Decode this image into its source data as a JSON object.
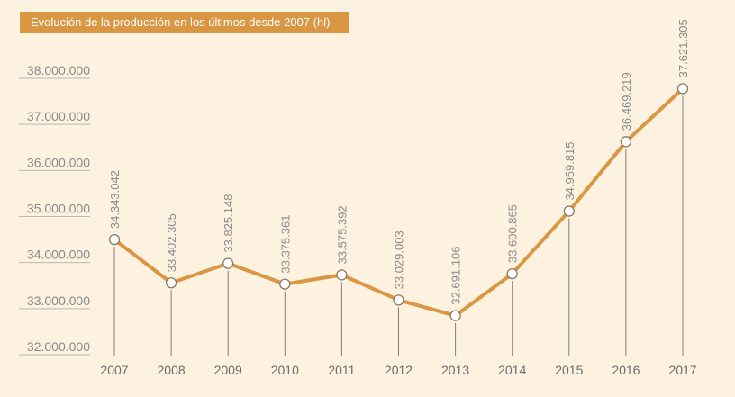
{
  "colors": {
    "background": "#fcf2df",
    "accent": "#d99744",
    "line": "#d99744",
    "marker_fill": "#ffffff",
    "stem": "#7f7f7f",
    "tick_text": "#8a8a8a"
  },
  "chart_data": {
    "type": "line",
    "title": "Evolución de la producción en los últimos desde 2007 (hl)",
    "xlabel": "",
    "ylabel": "",
    "x": [
      "2007",
      "2008",
      "2009",
      "2010",
      "2011",
      "2012",
      "2013",
      "2014",
      "2015",
      "2016",
      "2017"
    ],
    "series": [
      {
        "values": [
          34343042,
          33402305,
          33825148,
          33375361,
          33575392,
          33029003,
          32691106,
          33600865,
          34959815,
          36469219,
          37621305
        ]
      }
    ],
    "data_labels": [
      "34.343.042",
      "33.402.305",
      "33.825.148",
      "33.375.361",
      "33.575.392",
      "33.029.003",
      "32.691.106",
      "33.600.865",
      "34.959.815",
      "36.469.219",
      "37.621.305"
    ],
    "y_ticks": [
      32000000,
      33000000,
      34000000,
      35000000,
      36000000,
      37000000,
      38000000
    ],
    "y_tick_labels": [
      "32.000.000",
      "33.000.000",
      "34.000.000",
      "35.000.000",
      "36.000.000",
      "37.000.000",
      "38.000.000"
    ],
    "ylim": [
      32000000,
      38000000
    ],
    "grid": false,
    "legend": "none",
    "markers": "hollow-circle",
    "stems": true
  }
}
